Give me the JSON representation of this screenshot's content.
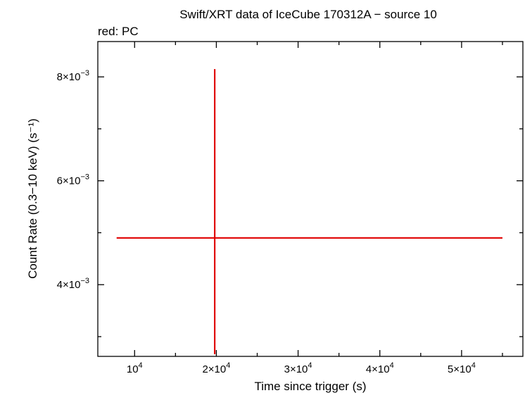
{
  "chart_data": {
    "type": "scatter",
    "title": "Swift/XRT data of IceCube 170312A − source 10",
    "subtitle": "red: PC",
    "xlabel": "Time since trigger (s)",
    "ylabel": "Count Rate (0.3−10 keV) (s⁻¹)",
    "xlim": [
      5500,
      57500
    ],
    "ylim": [
      0.00262,
      0.00868
    ],
    "x_ticks": [
      {
        "value": 10000,
        "mant": "",
        "exp": "4"
      },
      {
        "value": 20000,
        "mant": "2×",
        "exp": "4"
      },
      {
        "value": 30000,
        "mant": "3×",
        "exp": "4"
      },
      {
        "value": 40000,
        "mant": "4×",
        "exp": "4"
      },
      {
        "value": 50000,
        "mant": "5×",
        "exp": "4"
      }
    ],
    "y_ticks": [
      {
        "value": 0.004,
        "mant": "4×",
        "exp": "−3"
      },
      {
        "value": 0.006,
        "mant": "6×",
        "exp": "−3"
      },
      {
        "value": 0.008,
        "mant": "8×",
        "exp": "−3"
      }
    ],
    "series": [
      {
        "color": "#e00000",
        "points": [
          {
            "x": 19800,
            "y": 0.0049,
            "xmin": 7800,
            "xmax": 55000,
            "ymin": 0.00266,
            "ymax": 0.00815
          }
        ]
      }
    ]
  }
}
